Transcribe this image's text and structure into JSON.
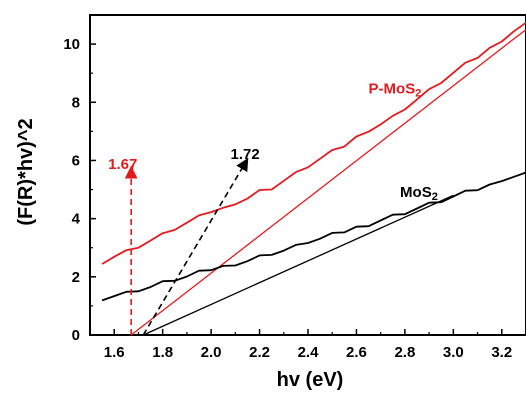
{
  "chart_data": {
    "type": "line",
    "xlabel": "hv (eV)",
    "ylabel": "(F(R)*hv)^2",
    "xlim": [
      1.5,
      3.3
    ],
    "ylim": [
      0,
      11
    ],
    "xticks": [
      "1.6",
      "1.8",
      "2.0",
      "2.2",
      "2.4",
      "2.6",
      "2.8",
      "3.0",
      "3.2"
    ],
    "yticks": [
      "0",
      "2",
      "4",
      "6",
      "8",
      "10"
    ],
    "grid": false,
    "legend": "none",
    "series": [
      {
        "name": "P-MoS2",
        "color": "#e41a1c",
        "x": [
          1.55,
          1.6,
          1.65,
          1.7,
          1.75,
          1.8,
          1.85,
          1.9,
          1.95,
          2.0,
          2.05,
          2.1,
          2.15,
          2.2,
          2.25,
          2.3,
          2.35,
          2.4,
          2.45,
          2.5,
          2.55,
          2.6,
          2.65,
          2.7,
          2.75,
          2.8,
          2.85,
          2.9,
          2.95,
          3.0,
          3.05,
          3.1,
          3.15,
          3.2,
          3.25,
          3.3
        ],
        "y": [
          2.5,
          2.7,
          2.88,
          3.05,
          3.25,
          3.45,
          3.65,
          3.85,
          4.05,
          4.25,
          4.35,
          4.55,
          4.7,
          4.95,
          5.05,
          5.3,
          5.55,
          5.8,
          6.05,
          6.3,
          6.5,
          6.8,
          7.05,
          7.25,
          7.5,
          7.8,
          8.1,
          8.4,
          8.7,
          9.0,
          9.3,
          9.55,
          9.85,
          10.15,
          10.45,
          10.7
        ]
      },
      {
        "name": "MoS2",
        "color": "#000000",
        "x": [
          1.55,
          1.6,
          1.65,
          1.7,
          1.75,
          1.8,
          1.85,
          1.9,
          1.95,
          2.0,
          2.05,
          2.1,
          2.15,
          2.2,
          2.25,
          2.3,
          2.35,
          2.4,
          2.45,
          2.5,
          2.55,
          2.6,
          2.65,
          2.7,
          2.75,
          2.8,
          2.85,
          2.9,
          2.95,
          3.0,
          3.05,
          3.1,
          3.15,
          3.2,
          3.25,
          3.3
        ],
        "y": [
          1.25,
          1.35,
          1.45,
          1.55,
          1.65,
          1.8,
          1.9,
          2.0,
          2.15,
          2.25,
          2.35,
          2.45,
          2.55,
          2.7,
          2.8,
          2.9,
          3.05,
          3.2,
          3.3,
          3.45,
          3.55,
          3.7,
          3.8,
          3.95,
          4.1,
          4.2,
          4.35,
          4.5,
          4.6,
          4.75,
          4.9,
          5.0,
          5.15,
          5.35,
          5.45,
          5.55
        ]
      }
    ],
    "fit_lines": [
      {
        "series": "P-MoS2",
        "color": "#e41a1c",
        "x": [
          1.67,
          3.3
        ],
        "y": [
          0,
          10.5
        ]
      },
      {
        "series": "MoS2",
        "color": "#000000",
        "x": [
          1.72,
          3.0
        ],
        "y": [
          0,
          4.8
        ]
      }
    ],
    "annotations": [
      {
        "text": "P-MoS",
        "subscript": "2",
        "color": "#e41a1c",
        "x": 2.65,
        "y": 8.3
      },
      {
        "text": "MoS",
        "subscript": "2",
        "color": "#000000",
        "x": 2.78,
        "y": 4.75
      },
      {
        "text": "1.67",
        "subscript": "",
        "color": "#e41a1c",
        "x": 1.575,
        "y": 5.7
      },
      {
        "text": "1.72",
        "subscript": "",
        "color": "#000000",
        "x": 2.08,
        "y": 6.05
      }
    ],
    "arrows": [
      {
        "color": "#e41a1c",
        "style": "dashed",
        "x": [
          1.67,
          1.67
        ],
        "y": [
          0,
          5.6
        ]
      },
      {
        "color": "#000000",
        "style": "dashed",
        "x": [
          1.72,
          2.14
        ],
        "y": [
          0,
          5.9
        ]
      }
    ]
  }
}
